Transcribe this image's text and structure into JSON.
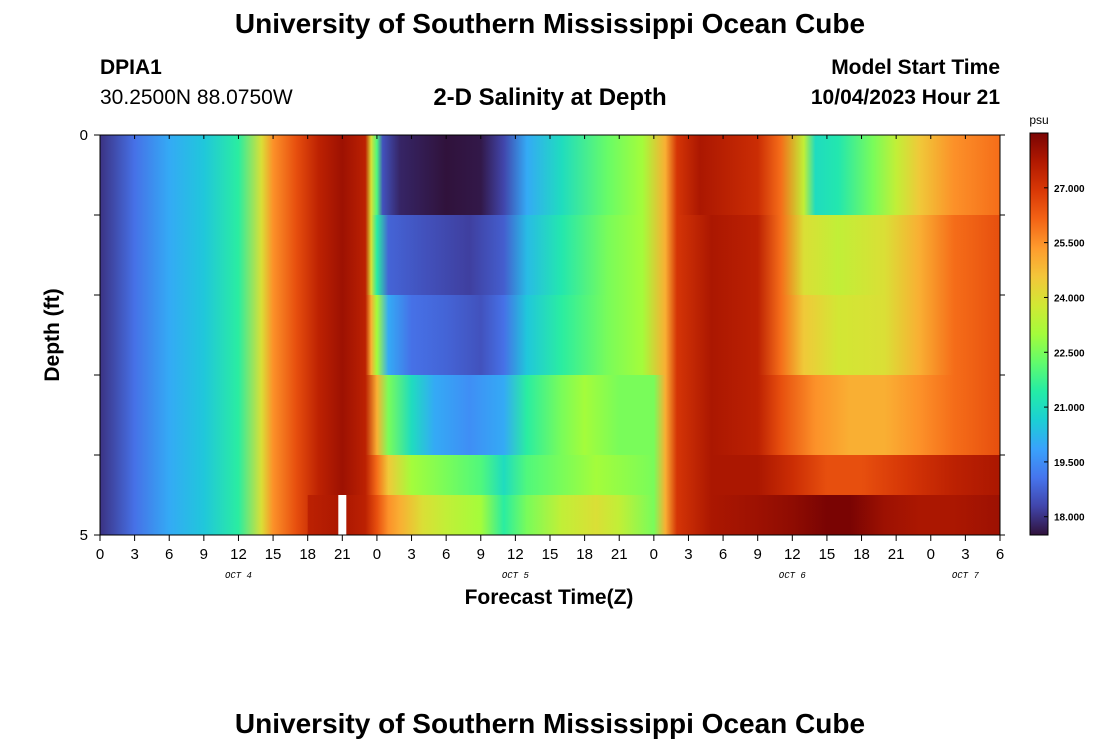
{
  "header": {
    "title": "University of Southern Mississippi Ocean Cube",
    "station": "DPIA1",
    "coordinates": "30.2500N  88.0750W",
    "subtitle": "2-D Salinity at Depth",
    "model_start_label": "Model Start Time",
    "model_start_value": "10/04/2023 Hour 21"
  },
  "footer": {
    "title": "University of Southern Mississippi Ocean Cube"
  },
  "chart_data": {
    "type": "heatmap",
    "title": "2-D Salinity at Depth",
    "xlabel": "Forecast Time(Z)",
    "ylabel": "Depth (ft)",
    "x_range_hours": [
      0,
      78
    ],
    "x_tick_labels": [
      "0",
      "3",
      "6",
      "9",
      "12",
      "15",
      "18",
      "21",
      "0",
      "3",
      "6",
      "9",
      "12",
      "15",
      "18",
      "21",
      "0",
      "3",
      "6",
      "9",
      "12",
      "15",
      "18",
      "21",
      "0",
      "3",
      "6"
    ],
    "day_labels": [
      {
        "label": "OCT 4",
        "hour": 12
      },
      {
        "label": "OCT 5",
        "hour": 36
      },
      {
        "label": "OCT 6",
        "hour": 60
      },
      {
        "label": "OCT 7",
        "hour": 75
      }
    ],
    "y_range": [
      0,
      5
    ],
    "y_tick_labels": [
      {
        "value": 0,
        "label": "0"
      },
      {
        "value": 1,
        "label": ""
      },
      {
        "value": 2,
        "label": ""
      },
      {
        "value": 3,
        "label": ""
      },
      {
        "value": 4,
        "label": ""
      },
      {
        "value": 5,
        "label": "5"
      }
    ],
    "colorbar": {
      "unit": "psu",
      "min": 17.5,
      "max": 28.5,
      "ticks": [
        "18.000",
        "19.500",
        "21.000",
        "22.500",
        "24.000",
        "25.500",
        "27.000"
      ],
      "colors": [
        "#30123b",
        "#4145ab",
        "#4675ed",
        "#39a2fc",
        "#1bcfd4",
        "#24eca6",
        "#61fc6c",
        "#a4fc3b",
        "#d1e834",
        "#f3c63a",
        "#fe9b2d",
        "#f36315",
        "#d93806",
        "#b11901",
        "#7a0403"
      ]
    },
    "layers": [
      {
        "depth_range": [
          0,
          1
        ],
        "segments": [
          [
            0,
            18
          ],
          [
            3,
            19
          ],
          [
            6,
            20
          ],
          [
            9,
            20.5
          ],
          [
            12,
            21.5
          ],
          [
            14,
            24
          ],
          [
            15,
            25.5
          ],
          [
            17,
            26.5
          ],
          [
            19,
            27.5
          ],
          [
            21,
            28
          ],
          [
            23,
            27.5
          ],
          [
            23.5,
            24
          ],
          [
            24,
            22
          ],
          [
            24.5,
            18.5
          ],
          [
            26,
            17.8
          ],
          [
            30,
            17.5
          ],
          [
            33,
            17.6
          ],
          [
            35,
            18.3
          ],
          [
            37,
            20
          ],
          [
            40,
            21
          ],
          [
            44,
            22.3
          ],
          [
            47,
            23
          ],
          [
            49,
            25
          ],
          [
            50,
            27
          ],
          [
            52,
            27.8
          ],
          [
            57,
            27.2
          ],
          [
            59,
            26
          ],
          [
            61,
            23.5
          ],
          [
            62,
            21
          ],
          [
            64,
            21.3
          ],
          [
            67,
            22.5
          ],
          [
            69,
            23.5
          ],
          [
            71,
            24.5
          ],
          [
            74,
            25.5
          ],
          [
            78,
            26
          ]
        ]
      },
      {
        "depth_range": [
          1,
          2
        ],
        "segments": [
          [
            0,
            18
          ],
          [
            3,
            19
          ],
          [
            6,
            20
          ],
          [
            9,
            20.5
          ],
          [
            12,
            21.5
          ],
          [
            14,
            24
          ],
          [
            15,
            25.5
          ],
          [
            17,
            26.5
          ],
          [
            19,
            27.5
          ],
          [
            21,
            28
          ],
          [
            23,
            27.5
          ],
          [
            23.5,
            24
          ],
          [
            24,
            21.5
          ],
          [
            25,
            18.8
          ],
          [
            28,
            18.5
          ],
          [
            32,
            18.2
          ],
          [
            35,
            18.7
          ],
          [
            37,
            20.3
          ],
          [
            40,
            21.3
          ],
          [
            44,
            22.5
          ],
          [
            47,
            23
          ],
          [
            49,
            25
          ],
          [
            50,
            27
          ],
          [
            53,
            27.8
          ],
          [
            57,
            27.5
          ],
          [
            59,
            26
          ],
          [
            61,
            24
          ],
          [
            64,
            23.5
          ],
          [
            68,
            24
          ],
          [
            71,
            25
          ],
          [
            74,
            26
          ],
          [
            78,
            26.5
          ]
        ]
      },
      {
        "depth_range": [
          2,
          3
        ],
        "segments": [
          [
            0,
            18
          ],
          [
            3,
            19
          ],
          [
            6,
            20
          ],
          [
            9,
            20.5
          ],
          [
            12,
            21.5
          ],
          [
            14,
            24
          ],
          [
            15,
            25.5
          ],
          [
            17,
            26.5
          ],
          [
            19,
            27.5
          ],
          [
            21,
            28
          ],
          [
            23,
            27.5
          ],
          [
            23.5,
            25
          ],
          [
            24,
            23
          ],
          [
            25,
            20
          ],
          [
            27,
            19
          ],
          [
            30,
            18.8
          ],
          [
            33,
            18.5
          ],
          [
            35,
            19
          ],
          [
            37,
            20.5
          ],
          [
            40,
            21.5
          ],
          [
            44,
            22.5
          ],
          [
            47,
            23
          ],
          [
            49,
            25
          ],
          [
            50,
            27
          ],
          [
            53,
            27.8
          ],
          [
            57,
            27.5
          ],
          [
            59,
            26
          ],
          [
            61,
            24.5
          ],
          [
            64,
            23.8
          ],
          [
            68,
            24
          ],
          [
            71,
            25
          ],
          [
            74,
            26
          ],
          [
            78,
            26.5
          ]
        ]
      },
      {
        "depth_range": [
          3,
          4
        ],
        "segments": [
          [
            0,
            18
          ],
          [
            3,
            19
          ],
          [
            6,
            20
          ],
          [
            9,
            20.5
          ],
          [
            12,
            21.5
          ],
          [
            14,
            24
          ],
          [
            15,
            25.5
          ],
          [
            17,
            26.5
          ],
          [
            19,
            27.5
          ],
          [
            21,
            28
          ],
          [
            23,
            27.5
          ],
          [
            24,
            25
          ],
          [
            25,
            22.5
          ],
          [
            27,
            21
          ],
          [
            29,
            20
          ],
          [
            32,
            19.5
          ],
          [
            35,
            20
          ],
          [
            37,
            21.5
          ],
          [
            40,
            22.5
          ],
          [
            42,
            23
          ],
          [
            45,
            22.5
          ],
          [
            48,
            22.5
          ],
          [
            49,
            25
          ],
          [
            50,
            27
          ],
          [
            53,
            27.8
          ],
          [
            57,
            27.5
          ],
          [
            59,
            26.5
          ],
          [
            62,
            25.5
          ],
          [
            65,
            25
          ],
          [
            68,
            25
          ],
          [
            71,
            25.5
          ],
          [
            74,
            26
          ],
          [
            78,
            26.5
          ]
        ]
      },
      {
        "depth_range": [
          4,
          5
        ],
        "segments": [
          [
            0,
            18
          ],
          [
            3,
            19
          ],
          [
            6,
            20
          ],
          [
            9,
            20.5
          ],
          [
            12,
            21.5
          ],
          [
            14,
            24
          ],
          [
            15,
            25.5
          ],
          [
            17,
            26.5
          ],
          [
            19,
            27.5
          ],
          [
            21,
            28
          ],
          [
            23,
            27.5
          ],
          [
            24,
            26
          ],
          [
            25,
            24.5
          ],
          [
            27,
            23
          ],
          [
            30,
            22.5
          ],
          [
            33,
            22
          ],
          [
            35,
            21
          ],
          [
            37,
            22
          ],
          [
            40,
            22.5
          ],
          [
            43,
            23
          ],
          [
            45,
            22.8
          ],
          [
            48,
            22.5
          ],
          [
            49,
            25
          ],
          [
            50,
            27
          ],
          [
            53,
            27.8
          ],
          [
            57,
            27.8
          ],
          [
            60,
            27.2
          ],
          [
            63,
            26.5
          ],
          [
            66,
            26.5
          ],
          [
            70,
            27
          ],
          [
            74,
            27.5
          ],
          [
            78,
            27.8
          ]
        ]
      },
      {
        "depth_range": [
          4.5,
          5
        ],
        "segments": [
          [
            18,
            27.5
          ],
          [
            21,
            27.8
          ],
          [
            23,
            27.5
          ],
          [
            24,
            26.5
          ],
          [
            25,
            25.5
          ],
          [
            26,
            25
          ],
          [
            28,
            24
          ],
          [
            30,
            23.5
          ],
          [
            33,
            23
          ],
          [
            35,
            21.5
          ],
          [
            37,
            22.5
          ],
          [
            40,
            23.5
          ],
          [
            43,
            24
          ],
          [
            45,
            23.5
          ],
          [
            48,
            22.5
          ],
          [
            49,
            25
          ],
          [
            50,
            27
          ],
          [
            53,
            27.8
          ],
          [
            57,
            28
          ],
          [
            60,
            28.2
          ],
          [
            63,
            28.5
          ],
          [
            65,
            28.5
          ],
          [
            68,
            28
          ],
          [
            71,
            27.8
          ],
          [
            74,
            27.8
          ],
          [
            78,
            28
          ]
        ]
      }
    ],
    "missing_data_marker": {
      "hour": 21,
      "depth_range": [
        4.5,
        5
      ]
    }
  }
}
